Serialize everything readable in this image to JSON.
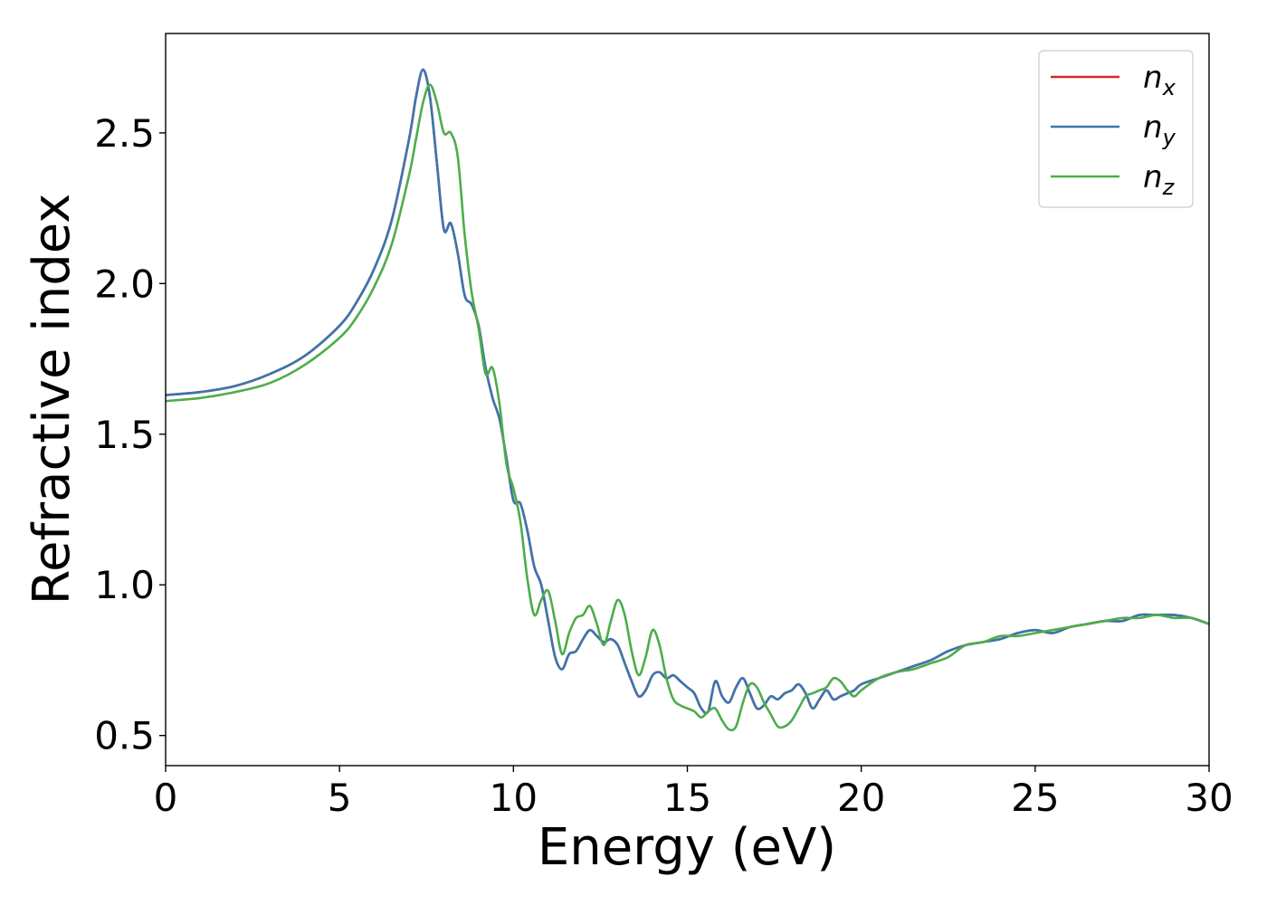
{
  "chart_data": {
    "type": "line",
    "title": "",
    "xlabel": "Energy (eV)",
    "ylabel": "Refractive index",
    "xlim": [
      0,
      30
    ],
    "ylim": [
      0.4,
      2.83
    ],
    "xticks": [
      0,
      5,
      10,
      15,
      20,
      25,
      30
    ],
    "xtick_labels": [
      "0",
      "5",
      "10",
      "15",
      "20",
      "25",
      "30"
    ],
    "yticks": [
      0.5,
      1.0,
      1.5,
      2.0,
      2.5
    ],
    "ytick_labels": [
      "0.5",
      "1.0",
      "1.5",
      "2.0",
      "2.5"
    ],
    "grid": false,
    "legend_position": "top-right",
    "series": [
      {
        "name": "n_x",
        "label_main": "n",
        "label_sub": "x",
        "color": "#d62728",
        "x": [
          0,
          1,
          2,
          3,
          4,
          5,
          5.5,
          6,
          6.5,
          7,
          7.2,
          7.4,
          7.6,
          7.8,
          8.0,
          8.2,
          8.4,
          8.6,
          8.8,
          9.0,
          9.2,
          9.4,
          9.6,
          9.8,
          10.0,
          10.2,
          10.4,
          10.6,
          10.8,
          11.0,
          11.2,
          11.4,
          11.6,
          11.8,
          12.0,
          12.2,
          12.4,
          12.6,
          12.8,
          13.0,
          13.2,
          13.4,
          13.6,
          13.8,
          14.0,
          14.2,
          14.4,
          14.6,
          14.8,
          15.0,
          15.2,
          15.4,
          15.6,
          15.8,
          16.0,
          16.2,
          16.4,
          16.6,
          16.8,
          17.0,
          17.2,
          17.4,
          17.6,
          17.8,
          18.0,
          18.2,
          18.4,
          18.6,
          18.8,
          19.0,
          19.2,
          19.4,
          19.6,
          19.8,
          20.0,
          20.5,
          21.0,
          21.5,
          22.0,
          22.5,
          23.0,
          23.5,
          24.0,
          24.5,
          25.0,
          25.5,
          26.0,
          26.5,
          27.0,
          27.5,
          28.0,
          28.5,
          29.0,
          29.5,
          30.0
        ],
        "y": [
          1.63,
          1.64,
          1.66,
          1.7,
          1.76,
          1.86,
          1.94,
          2.05,
          2.21,
          2.48,
          2.62,
          2.71,
          2.62,
          2.4,
          2.18,
          2.2,
          2.1,
          1.96,
          1.93,
          1.86,
          1.72,
          1.62,
          1.55,
          1.42,
          1.28,
          1.27,
          1.18,
          1.06,
          1.0,
          0.88,
          0.76,
          0.72,
          0.77,
          0.78,
          0.82,
          0.85,
          0.83,
          0.81,
          0.82,
          0.8,
          0.74,
          0.68,
          0.63,
          0.65,
          0.7,
          0.71,
          0.69,
          0.7,
          0.68,
          0.66,
          0.64,
          0.59,
          0.58,
          0.68,
          0.63,
          0.61,
          0.66,
          0.69,
          0.64,
          0.59,
          0.6,
          0.63,
          0.62,
          0.64,
          0.65,
          0.67,
          0.64,
          0.59,
          0.62,
          0.65,
          0.62,
          0.63,
          0.64,
          0.65,
          0.67,
          0.69,
          0.71,
          0.73,
          0.75,
          0.78,
          0.8,
          0.81,
          0.82,
          0.84,
          0.85,
          0.84,
          0.86,
          0.87,
          0.88,
          0.88,
          0.9,
          0.9,
          0.9,
          0.89,
          0.87
        ]
      },
      {
        "name": "n_y",
        "label_main": "n",
        "label_sub": "y",
        "color": "#3b75af",
        "x": [
          0,
          1,
          2,
          3,
          4,
          5,
          5.5,
          6,
          6.5,
          7,
          7.2,
          7.4,
          7.6,
          7.8,
          8.0,
          8.2,
          8.4,
          8.6,
          8.8,
          9.0,
          9.2,
          9.4,
          9.6,
          9.8,
          10.0,
          10.2,
          10.4,
          10.6,
          10.8,
          11.0,
          11.2,
          11.4,
          11.6,
          11.8,
          12.0,
          12.2,
          12.4,
          12.6,
          12.8,
          13.0,
          13.2,
          13.4,
          13.6,
          13.8,
          14.0,
          14.2,
          14.4,
          14.6,
          14.8,
          15.0,
          15.2,
          15.4,
          15.6,
          15.8,
          16.0,
          16.2,
          16.4,
          16.6,
          16.8,
          17.0,
          17.2,
          17.4,
          17.6,
          17.8,
          18.0,
          18.2,
          18.4,
          18.6,
          18.8,
          19.0,
          19.2,
          19.4,
          19.6,
          19.8,
          20.0,
          20.5,
          21.0,
          21.5,
          22.0,
          22.5,
          23.0,
          23.5,
          24.0,
          24.5,
          25.0,
          25.5,
          26.0,
          26.5,
          27.0,
          27.5,
          28.0,
          28.5,
          29.0,
          29.5,
          30.0
        ],
        "y": [
          1.63,
          1.64,
          1.66,
          1.7,
          1.76,
          1.86,
          1.94,
          2.05,
          2.21,
          2.48,
          2.62,
          2.71,
          2.62,
          2.4,
          2.18,
          2.2,
          2.1,
          1.96,
          1.93,
          1.86,
          1.72,
          1.62,
          1.55,
          1.42,
          1.28,
          1.27,
          1.18,
          1.06,
          1.0,
          0.88,
          0.76,
          0.72,
          0.77,
          0.78,
          0.82,
          0.85,
          0.83,
          0.81,
          0.82,
          0.8,
          0.74,
          0.68,
          0.63,
          0.65,
          0.7,
          0.71,
          0.69,
          0.7,
          0.68,
          0.66,
          0.64,
          0.59,
          0.58,
          0.68,
          0.63,
          0.61,
          0.66,
          0.69,
          0.64,
          0.59,
          0.6,
          0.63,
          0.62,
          0.64,
          0.65,
          0.67,
          0.64,
          0.59,
          0.62,
          0.65,
          0.62,
          0.63,
          0.64,
          0.65,
          0.67,
          0.69,
          0.71,
          0.73,
          0.75,
          0.78,
          0.8,
          0.81,
          0.82,
          0.84,
          0.85,
          0.84,
          0.86,
          0.87,
          0.88,
          0.88,
          0.9,
          0.9,
          0.9,
          0.89,
          0.87
        ]
      },
      {
        "name": "n_z",
        "label_main": "n",
        "label_sub": "z",
        "color": "#4dad4a",
        "x": [
          0,
          1,
          2,
          3,
          4,
          5,
          5.5,
          6,
          6.5,
          7,
          7.2,
          7.4,
          7.6,
          7.8,
          8.0,
          8.2,
          8.4,
          8.6,
          8.8,
          9.0,
          9.2,
          9.4,
          9.6,
          9.8,
          10.0,
          10.2,
          10.4,
          10.6,
          10.8,
          11.0,
          11.2,
          11.4,
          11.6,
          11.8,
          12.0,
          12.2,
          12.4,
          12.6,
          12.8,
          13.0,
          13.2,
          13.4,
          13.6,
          13.8,
          14.0,
          14.2,
          14.4,
          14.6,
          14.8,
          15.0,
          15.2,
          15.4,
          15.6,
          15.8,
          16.0,
          16.2,
          16.4,
          16.6,
          16.8,
          17.0,
          17.2,
          17.4,
          17.6,
          17.8,
          18.0,
          18.2,
          18.4,
          18.6,
          18.8,
          19.0,
          19.2,
          19.4,
          19.6,
          19.8,
          20.0,
          20.5,
          21.0,
          21.5,
          22.0,
          22.5,
          23.0,
          23.5,
          24.0,
          24.5,
          25.0,
          25.5,
          26.0,
          26.5,
          27.0,
          27.5,
          28.0,
          28.5,
          29.0,
          29.5,
          30.0
        ],
        "y": [
          1.61,
          1.62,
          1.64,
          1.67,
          1.73,
          1.82,
          1.89,
          1.99,
          2.13,
          2.36,
          2.48,
          2.6,
          2.66,
          2.6,
          2.5,
          2.5,
          2.42,
          2.16,
          1.97,
          1.85,
          1.7,
          1.72,
          1.6,
          1.4,
          1.32,
          1.21,
          1.02,
          0.9,
          0.95,
          0.98,
          0.88,
          0.77,
          0.84,
          0.89,
          0.9,
          0.93,
          0.87,
          0.8,
          0.88,
          0.95,
          0.9,
          0.78,
          0.7,
          0.76,
          0.85,
          0.8,
          0.69,
          0.62,
          0.6,
          0.59,
          0.58,
          0.56,
          0.58,
          0.59,
          0.55,
          0.52,
          0.53,
          0.61,
          0.67,
          0.66,
          0.61,
          0.57,
          0.53,
          0.53,
          0.55,
          0.59,
          0.63,
          0.64,
          0.65,
          0.66,
          0.69,
          0.68,
          0.65,
          0.63,
          0.65,
          0.69,
          0.71,
          0.72,
          0.74,
          0.76,
          0.8,
          0.81,
          0.83,
          0.83,
          0.84,
          0.85,
          0.86,
          0.87,
          0.88,
          0.89,
          0.89,
          0.9,
          0.89,
          0.89,
          0.87
        ]
      }
    ]
  }
}
